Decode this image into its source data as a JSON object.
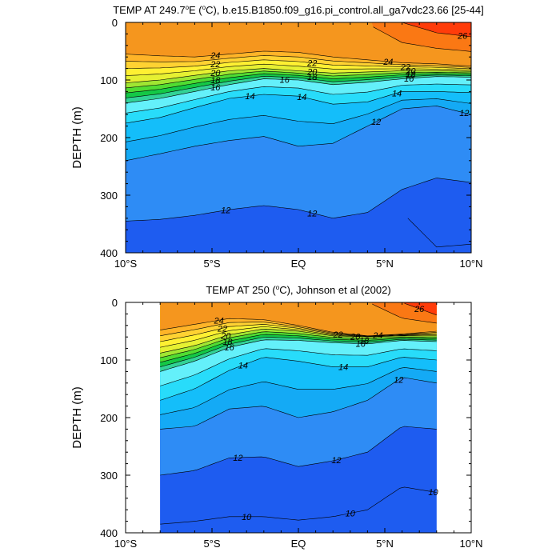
{
  "chart_data": [
    {
      "type": "contour",
      "title_parts": [
        "TEMP AT 249.7",
        "o",
        "E (",
        "o",
        "C), b.e15.B1850.f09_g16.pi_control.all_ga7vdc23.66 [25-44]"
      ],
      "ylabel": "DEPTH (m)",
      "xlim": [
        -10,
        10
      ],
      "ylim": [
        0,
        400
      ],
      "y_inverted": true,
      "x_ticks": [
        "10°S",
        "5°S",
        "EQ",
        "5°N",
        "10°N"
      ],
      "y_ticks": [
        "0",
        "100",
        "200",
        "300",
        "400"
      ],
      "data_extent": [
        -10,
        10
      ],
      "contour_labels": [
        "24",
        "22",
        "20",
        "18",
        "16",
        "14",
        "22",
        "20",
        "18",
        "16",
        "14",
        "24",
        "22",
        "20",
        "18",
        "16",
        "14",
        "12",
        "26",
        "12",
        "12",
        "12"
      ],
      "isotherm_depth_m": {
        "x": [
          -10,
          -8,
          -6,
          -4,
          -2,
          0,
          2,
          4,
          6,
          8,
          10
        ],
        "levels": {
          "26": [
            null,
            null,
            null,
            null,
            null,
            null,
            null,
            null,
            0,
            18,
            25
          ],
          "24": [
            55,
            58,
            60,
            55,
            50,
            52,
            60,
            65,
            70,
            72,
            76
          ],
          "20": [
            105,
            100,
            92,
            84,
            80,
            84,
            88,
            86,
            84,
            84,
            85
          ],
          "16": [
            140,
            132,
            120,
            108,
            98,
            100,
            108,
            104,
            98,
            94,
            95
          ],
          "14": [
            175,
            165,
            148,
            132,
            125,
            128,
            142,
            138,
            120,
            120,
            122
          ],
          "12": [
            240,
            228,
            215,
            205,
            198,
            215,
            210,
            180,
            150,
            145,
            160
          ],
          "11": [
            345,
            342,
            335,
            325,
            318,
            325,
            340,
            330,
            290,
            270,
            278
          ],
          "10": [
            null,
            null,
            null,
            null,
            null,
            null,
            null,
            null,
            null,
            390,
            385
          ]
        }
      }
    },
    {
      "type": "contour",
      "title_parts": [
        "TEMP AT 250 (",
        "o",
        "C), Johnson et al (2002)"
      ],
      "ylabel": "DEPTH (m)",
      "xlim": [
        -10,
        10
      ],
      "ylim": [
        0,
        400
      ],
      "y_inverted": true,
      "x_ticks": [
        "10°S",
        "5°S",
        "EQ",
        "5°N",
        "10°N"
      ],
      "y_ticks": [
        "0",
        "100",
        "200",
        "300",
        "400"
      ],
      "data_extent": [
        -8,
        8
      ],
      "contour_labels": [
        "24",
        "22",
        "20",
        "18",
        "16",
        "14",
        "22",
        "20",
        "18",
        "16",
        "24",
        "26",
        "14",
        "12",
        "12",
        "12",
        "10",
        "10",
        "10"
      ],
      "isotherm_depth_m": {
        "x": [
          -8,
          -6,
          -4,
          -2,
          0,
          2,
          4,
          6,
          8
        ],
        "levels": {
          "26": [
            null,
            null,
            null,
            null,
            null,
            null,
            null,
            0,
            22
          ],
          "24": [
            48,
            38,
            28,
            30,
            40,
            52,
            58,
            55,
            50
          ],
          "20": [
            88,
            75,
            56,
            46,
            50,
            58,
            60,
            58,
            58
          ],
          "16": [
            120,
            102,
            78,
            65,
            66,
            70,
            72,
            66,
            68
          ],
          "14": [
            170,
            150,
            118,
            95,
            102,
            112,
            112,
            95,
            100
          ],
          "12": [
            220,
            215,
            185,
            180,
            200,
            190,
            170,
            130,
            140
          ],
          "11": [
            300,
            292,
            270,
            268,
            285,
            275,
            260,
            215,
            220
          ],
          "10": [
            385,
            380,
            372,
            372,
            378,
            372,
            360,
            320,
            330
          ]
        }
      }
    }
  ],
  "colormap": {
    "levels": [
      10,
      11,
      12,
      13,
      14,
      15,
      16,
      17,
      18,
      19,
      20,
      21,
      22,
      23,
      24,
      25,
      26
    ],
    "colors": [
      "#1E5CF0",
      "#2E8CF5",
      "#14AAF5",
      "#14BEFA",
      "#28DCFA",
      "#64F0FA",
      "#32D296",
      "#14C846",
      "#50DC32",
      "#A0E632",
      "#E6F032",
      "#FFF032",
      "#FFD232",
      "#FFB428",
      "#F5961E",
      "#FA7814",
      "#FF3C0A"
    ]
  }
}
